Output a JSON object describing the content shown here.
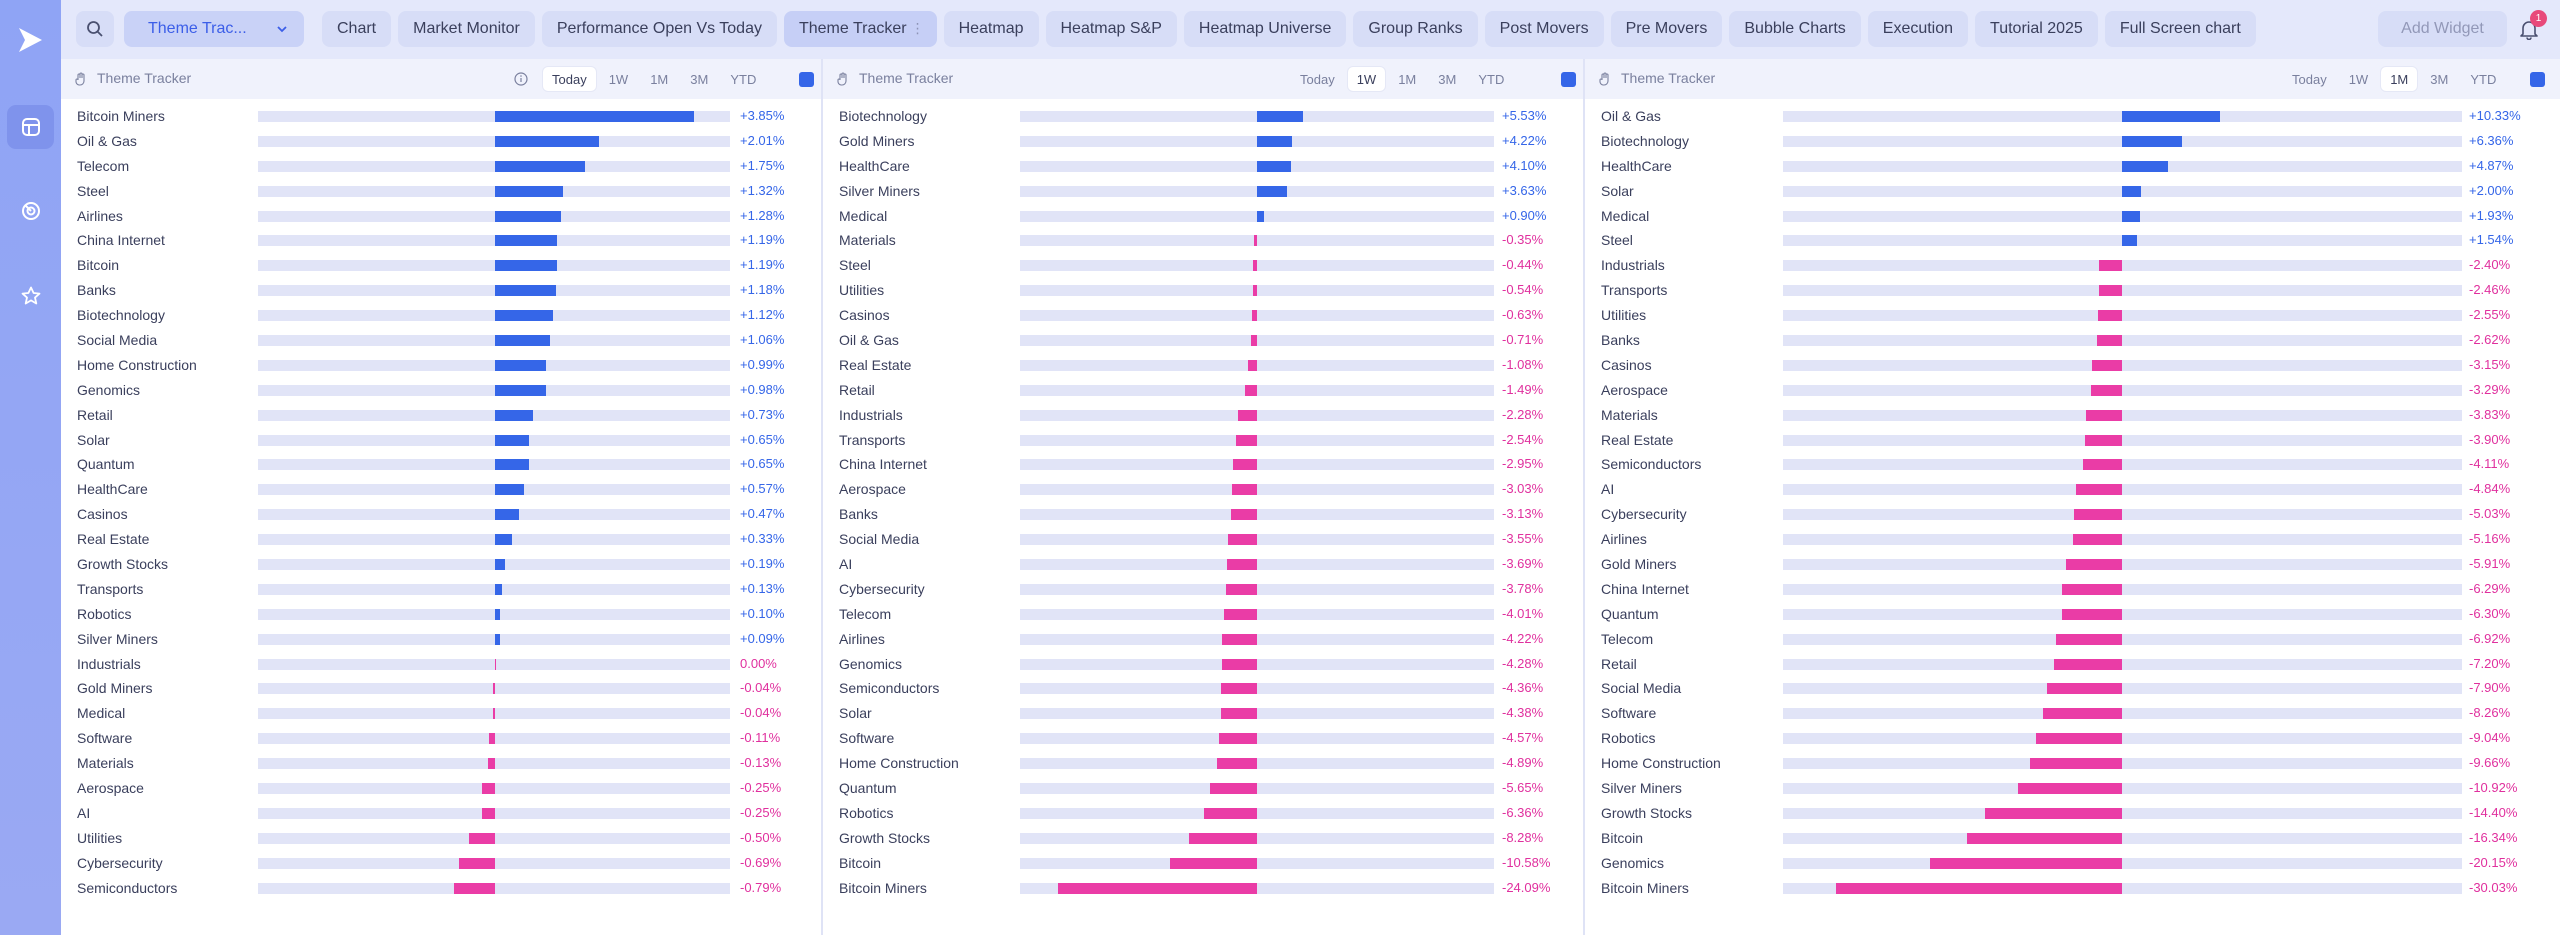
{
  "topbar": {
    "dashboard_select": "Theme Trac...",
    "tabs": [
      {
        "label": "Chart",
        "active": false
      },
      {
        "label": "Market Monitor",
        "active": false
      },
      {
        "label": "Performance Open Vs Today",
        "active": false
      },
      {
        "label": "Theme Tracker",
        "active": true
      },
      {
        "label": "Heatmap",
        "active": false
      },
      {
        "label": "Heatmap S&P",
        "active": false
      },
      {
        "label": "Heatmap Universe",
        "active": false
      },
      {
        "label": "Group Ranks",
        "active": false
      },
      {
        "label": "Post Movers",
        "active": false
      },
      {
        "label": "Pre Movers",
        "active": false
      },
      {
        "label": "Bubble Charts",
        "active": false
      },
      {
        "label": "Execution",
        "active": false
      },
      {
        "label": "Tutorial 2025",
        "active": false
      },
      {
        "label": "Full Screen chart",
        "active": false
      }
    ],
    "add_widget": "Add Widget",
    "notification_count": "1"
  },
  "colors": {
    "positive": "#3566e8",
    "negative": "#ea3ca6",
    "accent": "#3566e8"
  },
  "panels": [
    {
      "title": "Theme Tracker",
      "ranges": [
        "Today",
        "1W",
        "1M",
        "3M",
        "YTD"
      ],
      "selected_range": "Today",
      "show_info": true,
      "max_abs": 3.85,
      "rows": [
        {
          "name": "Bitcoin Miners",
          "value": 3.85,
          "label": "+3.85%"
        },
        {
          "name": "Oil & Gas",
          "value": 2.01,
          "label": "+2.01%"
        },
        {
          "name": "Telecom",
          "value": 1.75,
          "label": "+1.75%"
        },
        {
          "name": "Steel",
          "value": 1.32,
          "label": "+1.32%"
        },
        {
          "name": "Airlines",
          "value": 1.28,
          "label": "+1.28%"
        },
        {
          "name": "China Internet",
          "value": 1.19,
          "label": "+1.19%"
        },
        {
          "name": "Bitcoin",
          "value": 1.19,
          "label": "+1.19%"
        },
        {
          "name": "Banks",
          "value": 1.18,
          "label": "+1.18%"
        },
        {
          "name": "Biotechnology",
          "value": 1.12,
          "label": "+1.12%"
        },
        {
          "name": "Social Media",
          "value": 1.06,
          "label": "+1.06%"
        },
        {
          "name": "Home Construction",
          "value": 0.99,
          "label": "+0.99%"
        },
        {
          "name": "Genomics",
          "value": 0.98,
          "label": "+0.98%"
        },
        {
          "name": "Retail",
          "value": 0.73,
          "label": "+0.73%"
        },
        {
          "name": "Solar",
          "value": 0.65,
          "label": "+0.65%"
        },
        {
          "name": "Quantum",
          "value": 0.65,
          "label": "+0.65%"
        },
        {
          "name": "HealthCare",
          "value": 0.57,
          "label": "+0.57%"
        },
        {
          "name": "Casinos",
          "value": 0.47,
          "label": "+0.47%"
        },
        {
          "name": "Real Estate",
          "value": 0.33,
          "label": "+0.33%"
        },
        {
          "name": "Growth Stocks",
          "value": 0.19,
          "label": "+0.19%"
        },
        {
          "name": "Transports",
          "value": 0.13,
          "label": "+0.13%"
        },
        {
          "name": "Robotics",
          "value": 0.1,
          "label": "+0.10%"
        },
        {
          "name": "Silver Miners",
          "value": 0.09,
          "label": "+0.09%"
        },
        {
          "name": "Industrials",
          "value": 0.0,
          "label": "0.00%"
        },
        {
          "name": "Gold Miners",
          "value": -0.04,
          "label": "-0.04%"
        },
        {
          "name": "Medical",
          "value": -0.04,
          "label": "-0.04%"
        },
        {
          "name": "Software",
          "value": -0.11,
          "label": "-0.11%"
        },
        {
          "name": "Materials",
          "value": -0.13,
          "label": "-0.13%"
        },
        {
          "name": "Aerospace",
          "value": -0.25,
          "label": "-0.25%"
        },
        {
          "name": "AI",
          "value": -0.25,
          "label": "-0.25%"
        },
        {
          "name": "Utilities",
          "value": -0.5,
          "label": "-0.50%"
        },
        {
          "name": "Cybersecurity",
          "value": -0.69,
          "label": "-0.69%"
        },
        {
          "name": "Semiconductors",
          "value": -0.79,
          "label": "-0.79%"
        }
      ]
    },
    {
      "title": "Theme Tracker",
      "ranges": [
        "Today",
        "1W",
        "1M",
        "3M",
        "YTD"
      ],
      "selected_range": "1W",
      "show_info": false,
      "max_abs": 24.09,
      "rows": [
        {
          "name": "Biotechnology",
          "value": 5.53,
          "label": "+5.53%"
        },
        {
          "name": "Gold Miners",
          "value": 4.22,
          "label": "+4.22%"
        },
        {
          "name": "HealthCare",
          "value": 4.1,
          "label": "+4.10%"
        },
        {
          "name": "Silver Miners",
          "value": 3.63,
          "label": "+3.63%"
        },
        {
          "name": "Medical",
          "value": 0.9,
          "label": "+0.90%"
        },
        {
          "name": "Materials",
          "value": -0.35,
          "label": "-0.35%"
        },
        {
          "name": "Steel",
          "value": -0.44,
          "label": "-0.44%"
        },
        {
          "name": "Utilities",
          "value": -0.54,
          "label": "-0.54%"
        },
        {
          "name": "Casinos",
          "value": -0.63,
          "label": "-0.63%"
        },
        {
          "name": "Oil & Gas",
          "value": -0.71,
          "label": "-0.71%"
        },
        {
          "name": "Real Estate",
          "value": -1.08,
          "label": "-1.08%"
        },
        {
          "name": "Retail",
          "value": -1.49,
          "label": "-1.49%"
        },
        {
          "name": "Industrials",
          "value": -2.28,
          "label": "-2.28%"
        },
        {
          "name": "Transports",
          "value": -2.54,
          "label": "-2.54%"
        },
        {
          "name": "China Internet",
          "value": -2.95,
          "label": "-2.95%"
        },
        {
          "name": "Aerospace",
          "value": -3.03,
          "label": "-3.03%"
        },
        {
          "name": "Banks",
          "value": -3.13,
          "label": "-3.13%"
        },
        {
          "name": "Social Media",
          "value": -3.55,
          "label": "-3.55%"
        },
        {
          "name": "AI",
          "value": -3.69,
          "label": "-3.69%"
        },
        {
          "name": "Cybersecurity",
          "value": -3.78,
          "label": "-3.78%"
        },
        {
          "name": "Telecom",
          "value": -4.01,
          "label": "-4.01%"
        },
        {
          "name": "Airlines",
          "value": -4.22,
          "label": "-4.22%"
        },
        {
          "name": "Genomics",
          "value": -4.28,
          "label": "-4.28%"
        },
        {
          "name": "Semiconductors",
          "value": -4.36,
          "label": "-4.36%"
        },
        {
          "name": "Solar",
          "value": -4.38,
          "label": "-4.38%"
        },
        {
          "name": "Software",
          "value": -4.57,
          "label": "-4.57%"
        },
        {
          "name": "Home Construction",
          "value": -4.89,
          "label": "-4.89%"
        },
        {
          "name": "Quantum",
          "value": -5.65,
          "label": "-5.65%"
        },
        {
          "name": "Robotics",
          "value": -6.36,
          "label": "-6.36%"
        },
        {
          "name": "Growth Stocks",
          "value": -8.28,
          "label": "-8.28%"
        },
        {
          "name": "Bitcoin",
          "value": -10.58,
          "label": "-10.58%"
        },
        {
          "name": "Bitcoin Miners",
          "value": -24.09,
          "label": "-24.09%"
        }
      ]
    },
    {
      "title": "Theme Tracker",
      "ranges": [
        "Today",
        "1W",
        "1M",
        "3M",
        "YTD"
      ],
      "selected_range": "1M",
      "show_info": false,
      "max_abs": 30.03,
      "rows": [
        {
          "name": "Oil & Gas",
          "value": 10.33,
          "label": "+10.33%"
        },
        {
          "name": "Biotechnology",
          "value": 6.36,
          "label": "+6.36%"
        },
        {
          "name": "HealthCare",
          "value": 4.87,
          "label": "+4.87%"
        },
        {
          "name": "Solar",
          "value": 2.0,
          "label": "+2.00%"
        },
        {
          "name": "Medical",
          "value": 1.93,
          "label": "+1.93%"
        },
        {
          "name": "Steel",
          "value": 1.54,
          "label": "+1.54%"
        },
        {
          "name": "Industrials",
          "value": -2.4,
          "label": "-2.40%"
        },
        {
          "name": "Transports",
          "value": -2.46,
          "label": "-2.46%"
        },
        {
          "name": "Utilities",
          "value": -2.55,
          "label": "-2.55%"
        },
        {
          "name": "Banks",
          "value": -2.62,
          "label": "-2.62%"
        },
        {
          "name": "Casinos",
          "value": -3.15,
          "label": "-3.15%"
        },
        {
          "name": "Aerospace",
          "value": -3.29,
          "label": "-3.29%"
        },
        {
          "name": "Materials",
          "value": -3.83,
          "label": "-3.83%"
        },
        {
          "name": "Real Estate",
          "value": -3.9,
          "label": "-3.90%"
        },
        {
          "name": "Semiconductors",
          "value": -4.11,
          "label": "-4.11%"
        },
        {
          "name": "AI",
          "value": -4.84,
          "label": "-4.84%"
        },
        {
          "name": "Cybersecurity",
          "value": -5.03,
          "label": "-5.03%"
        },
        {
          "name": "Airlines",
          "value": -5.16,
          "label": "-5.16%"
        },
        {
          "name": "Gold Miners",
          "value": -5.91,
          "label": "-5.91%"
        },
        {
          "name": "China Internet",
          "value": -6.29,
          "label": "-6.29%"
        },
        {
          "name": "Quantum",
          "value": -6.3,
          "label": "-6.30%"
        },
        {
          "name": "Telecom",
          "value": -6.92,
          "label": "-6.92%"
        },
        {
          "name": "Retail",
          "value": -7.2,
          "label": "-7.20%"
        },
        {
          "name": "Social Media",
          "value": -7.9,
          "label": "-7.90%"
        },
        {
          "name": "Software",
          "value": -8.26,
          "label": "-8.26%"
        },
        {
          "name": "Robotics",
          "value": -9.04,
          "label": "-9.04%"
        },
        {
          "name": "Home Construction",
          "value": -9.66,
          "label": "-9.66%"
        },
        {
          "name": "Silver Miners",
          "value": -10.92,
          "label": "-10.92%"
        },
        {
          "name": "Growth Stocks",
          "value": -14.4,
          "label": "-14.40%"
        },
        {
          "name": "Bitcoin",
          "value": -16.34,
          "label": "-16.34%"
        },
        {
          "name": "Genomics",
          "value": -20.15,
          "label": "-20.15%"
        },
        {
          "name": "Bitcoin Miners",
          "value": -30.03,
          "label": "-30.03%"
        }
      ]
    }
  ]
}
